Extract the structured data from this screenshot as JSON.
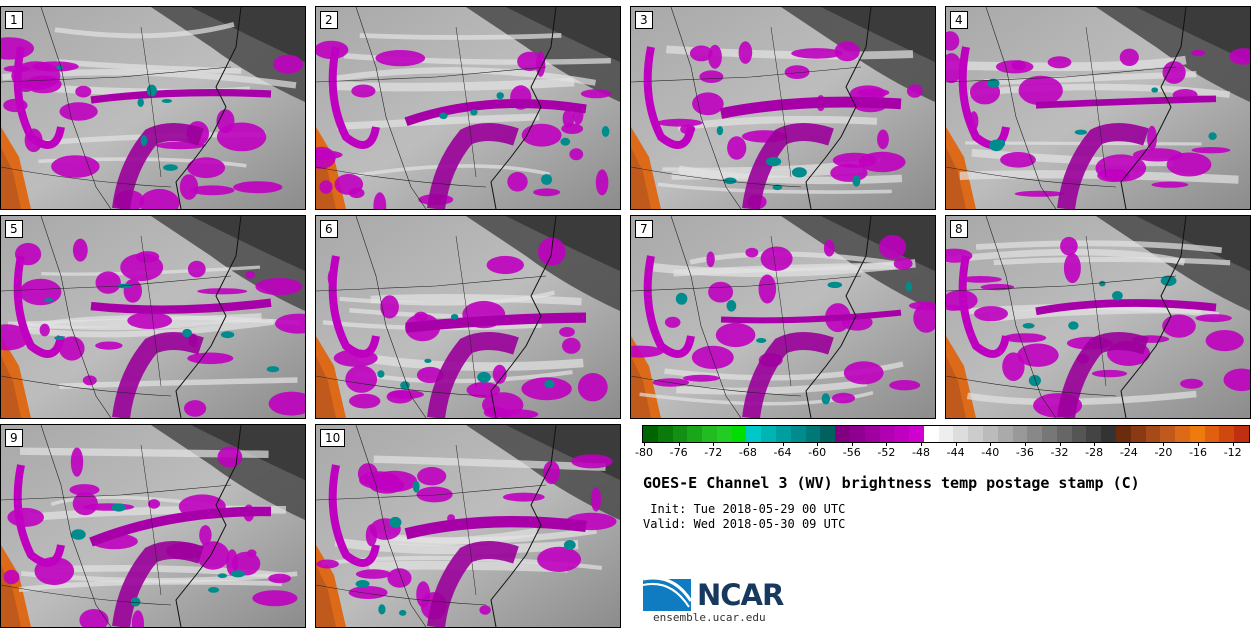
{
  "panels": [
    {
      "label": "1"
    },
    {
      "label": "2"
    },
    {
      "label": "3"
    },
    {
      "label": "4"
    },
    {
      "label": "5"
    },
    {
      "label": "6"
    },
    {
      "label": "7"
    },
    {
      "label": "8"
    },
    {
      "label": "9"
    },
    {
      "label": "10"
    }
  ],
  "colorbar": {
    "colors": [
      "#006400",
      "#0a7a0a",
      "#138f13",
      "#1aa51a",
      "#22bb22",
      "#22cc22",
      "#00dd00",
      "#00c8c8",
      "#00b4b4",
      "#009f9f",
      "#008c8c",
      "#007878",
      "#00615f",
      "#800080",
      "#900090",
      "#a000a0",
      "#b000b0",
      "#c000c0",
      "#d000d0",
      "#ffffff",
      "#eeeeee",
      "#dddddd",
      "#cccccc",
      "#bbbbbb",
      "#aaaaaa",
      "#999999",
      "#888888",
      "#777777",
      "#666666",
      "#555555",
      "#444444",
      "#333333",
      "#6b2b0c",
      "#8a3a12",
      "#a54a18",
      "#c05a1c",
      "#dd6a18",
      "#ee7a10",
      "#e06010",
      "#d04810",
      "#c03010"
    ],
    "ticks": [
      "-80",
      "-76",
      "-72",
      "-68",
      "-64",
      "-60",
      "-56",
      "-52",
      "-48",
      "-44",
      "-40",
      "-36",
      "-32",
      "-28",
      "-24",
      "-20",
      "-16",
      "-12"
    ]
  },
  "title": "GOES-E Channel 3 (WV) brightness temp postage stamp (C)",
  "init": " Init: Tue 2018-05-29 00 UTC",
  "valid": "Valid: Wed 2018-05-30 09 UTC",
  "logo": {
    "name": "NCAR",
    "url_text": "ensemble.ucar.edu"
  }
}
